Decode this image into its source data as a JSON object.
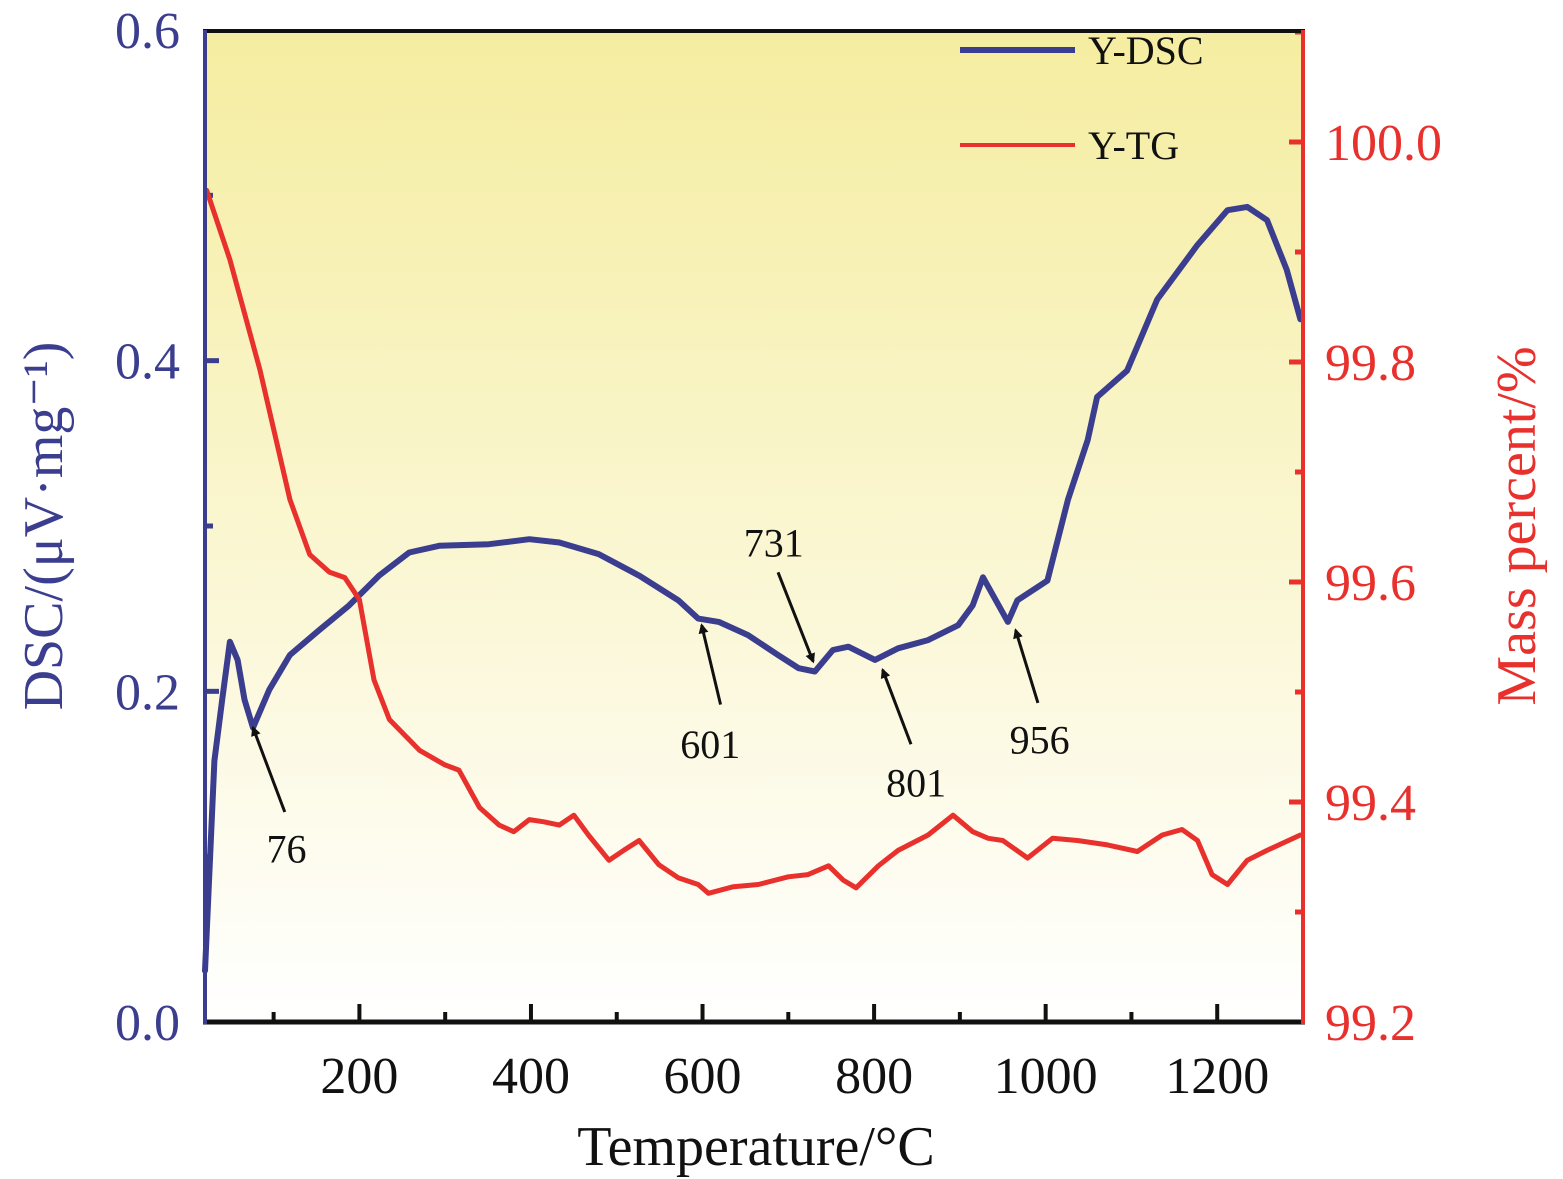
{
  "chart_data": {
    "type": "line",
    "title": "",
    "xlabel": "Temperature/°C",
    "ylabel_left": "DSC/(μV·mg⁻¹)",
    "ylabel_right": "Mass percent/%",
    "xlim": [
      20,
      1300
    ],
    "ylim_left": [
      0.0,
      0.6
    ],
    "ylim_right": [
      99.2,
      100.1
    ],
    "x_ticks": [
      "200",
      "400",
      "600",
      "800",
      "1000",
      "1200"
    ],
    "x_tick_values": [
      200,
      400,
      600,
      800,
      1000,
      1200
    ],
    "y_left_ticks": [
      "0.0",
      "0.2",
      "0.4",
      "0.6"
    ],
    "y_left_tick_values": [
      0.0,
      0.2,
      0.4,
      0.6
    ],
    "y_right_ticks": [
      "99.2",
      "99.4",
      "99.6",
      "99.8",
      "100.0"
    ],
    "y_right_tick_values": [
      99.2,
      99.4,
      99.6,
      99.8,
      100.0
    ],
    "grid": false,
    "legend_position": "top-right",
    "colors": {
      "dsc": "#3b3d8f",
      "tg": "#e8302c",
      "left_axis": "#3b3d8f",
      "right_axis": "#e8302c",
      "bg_top": "#f5eda0",
      "bg_bottom": "#ffffff"
    },
    "series": [
      {
        "name": "Y-DSC",
        "axis": "left",
        "x": [
          20,
          31,
          40,
          49,
          58,
          66,
          76,
          95,
          119,
          153,
          188,
          223,
          258,
          293,
          351,
          398,
          433,
          479,
          526,
          572,
          595,
          619,
          653,
          688,
          712,
          731,
          752,
          770,
          801,
          828,
          863,
          898,
          915,
          927,
          956,
          967,
          1002,
          1026,
          1049,
          1060,
          1095,
          1130,
          1177,
          1212,
          1235,
          1258,
          1281,
          1297
        ],
        "y": [
          0.031,
          0.158,
          0.195,
          0.23,
          0.219,
          0.195,
          0.178,
          0.201,
          0.222,
          0.237,
          0.252,
          0.27,
          0.284,
          0.288,
          0.289,
          0.292,
          0.29,
          0.283,
          0.27,
          0.255,
          0.244,
          0.242,
          0.234,
          0.222,
          0.214,
          0.212,
          0.225,
          0.227,
          0.219,
          0.226,
          0.231,
          0.24,
          0.252,
          0.269,
          0.242,
          0.255,
          0.267,
          0.316,
          0.352,
          0.378,
          0.394,
          0.437,
          0.47,
          0.491,
          0.493,
          0.485,
          0.455,
          0.425
        ]
      },
      {
        "name": "Y-TG",
        "axis": "right",
        "x": [
          22,
          49,
          84,
          119,
          142,
          165,
          183,
          200,
          217,
          235,
          270,
          299,
          316,
          340,
          363,
          380,
          398,
          415,
          433,
          450,
          467,
          491,
          508,
          526,
          549,
          572,
          595,
          607,
          636,
          665,
          700,
          723,
          747,
          764,
          779,
          805,
          828,
          863,
          892,
          915,
          933,
          950,
          979,
          1008,
          1037,
          1072,
          1107,
          1136,
          1159,
          1177,
          1194,
          1212,
          1235,
          1258,
          1297
        ],
        "y": [
          99.956,
          99.893,
          99.793,
          99.675,
          99.625,
          99.609,
          99.604,
          99.584,
          99.511,
          99.475,
          99.447,
          99.434,
          99.429,
          99.395,
          99.379,
          99.373,
          99.384,
          99.382,
          99.379,
          99.388,
          99.37,
          99.347,
          99.356,
          99.365,
          99.343,
          99.331,
          99.325,
          99.317,
          99.323,
          99.325,
          99.332,
          99.334,
          99.342,
          99.329,
          99.322,
          99.342,
          99.356,
          99.37,
          99.388,
          99.373,
          99.367,
          99.365,
          99.349,
          99.367,
          99.365,
          99.361,
          99.355,
          99.37,
          99.375,
          99.365,
          99.334,
          99.325,
          99.347,
          99.356,
          99.37
        ]
      }
    ],
    "annotations": [
      {
        "text": "76",
        "tip": [
          76,
          0.178
        ],
        "tail": [
          113,
          0.127
        ],
        "label_at": [
          115,
          0.105
        ]
      },
      {
        "text": "601",
        "tip": [
          599,
          0.24
        ],
        "tail": [
          621,
          0.192
        ],
        "label_at": [
          609,
          0.168
        ]
      },
      {
        "text": "731",
        "tip": [
          729,
          0.218
        ],
        "tail": [
          688,
          0.272
        ],
        "label_at": [
          683,
          0.29
        ]
      },
      {
        "text": "801",
        "tip": [
          810,
          0.213
        ],
        "tail": [
          843,
          0.168
        ],
        "label_at": [
          849,
          0.145
        ]
      },
      {
        "text": "956",
        "tip": [
          965,
          0.237
        ],
        "tail": [
          991,
          0.193
        ],
        "label_at": [
          993,
          0.171
        ]
      }
    ]
  }
}
